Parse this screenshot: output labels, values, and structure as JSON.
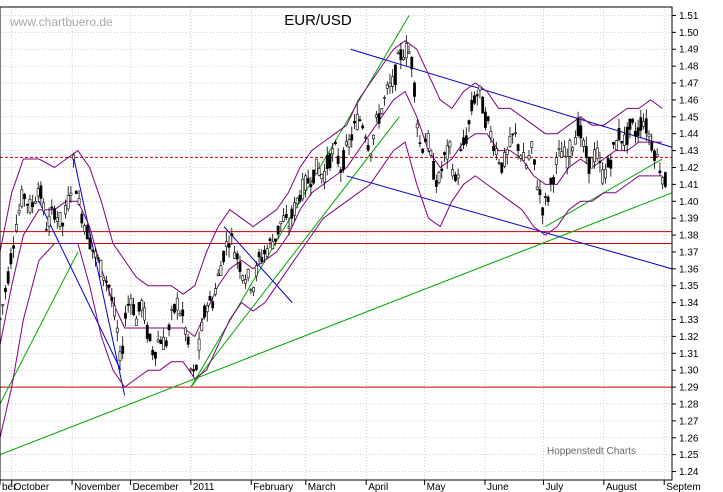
{
  "chart_data": {
    "type": "candlestick",
    "title": "EUR/USD",
    "watermark": "www.chartbuero.de",
    "credit": "Hoppenstedt Charts",
    "ylim": [
      1.235,
      1.515
    ],
    "y_ticks": [
      "1.51",
      "1.50",
      "1.49",
      "1.48",
      "1.47",
      "1.46",
      "1.45",
      "1.44",
      "1.43",
      "1.42",
      "1.41",
      "1.40",
      "1.39",
      "1.38",
      "1.37",
      "1.36",
      "1.35",
      "1.34",
      "1.33",
      "1.32",
      "1.31",
      "1.30",
      "1.29",
      "1.28",
      "1.27",
      "1.26",
      "1.25",
      "1.24"
    ],
    "x_labels": [
      {
        "label": "ber",
        "day": 0
      },
      {
        "label": "October",
        "day": 6
      },
      {
        "label": "November",
        "day": 37
      },
      {
        "label": "December",
        "day": 67
      },
      {
        "label": "2011",
        "day": 98
      },
      {
        "label": "January",
        "day": 98
      },
      {
        "label": "February",
        "day": 129
      },
      {
        "label": "March",
        "day": 157
      },
      {
        "label": "April",
        "day": 188
      },
      {
        "label": "May",
        "day": 218
      },
      {
        "label": "June",
        "day": 249
      },
      {
        "label": "July",
        "day": 279
      },
      {
        "label": "August",
        "day": 310
      },
      {
        "label": "Septem",
        "day": 341
      }
    ],
    "grid": true,
    "price_path": [
      [
        0,
        1.33
      ],
      [
        4,
        1.355
      ],
      [
        8,
        1.385
      ],
      [
        12,
        1.405
      ],
      [
        16,
        1.395
      ],
      [
        20,
        1.41
      ],
      [
        24,
        1.385
      ],
      [
        28,
        1.395
      ],
      [
        32,
        1.385
      ],
      [
        36,
        1.405
      ],
      [
        38,
        1.425
      ],
      [
        40,
        1.4
      ],
      [
        44,
        1.385
      ],
      [
        48,
        1.37
      ],
      [
        52,
        1.36
      ],
      [
        56,
        1.35
      ],
      [
        60,
        1.325
      ],
      [
        62,
        1.3
      ],
      [
        64,
        1.33
      ],
      [
        67,
        1.345
      ],
      [
        70,
        1.33
      ],
      [
        73,
        1.34
      ],
      [
        76,
        1.32
      ],
      [
        79,
        1.31
      ],
      [
        82,
        1.32
      ],
      [
        85,
        1.315
      ],
      [
        88,
        1.33
      ],
      [
        91,
        1.34
      ],
      [
        94,
        1.33
      ],
      [
        96,
        1.32
      ],
      [
        98,
        1.3
      ],
      [
        100,
        1.295
      ],
      [
        103,
        1.32
      ],
      [
        106,
        1.34
      ],
      [
        109,
        1.34
      ],
      [
        112,
        1.355
      ],
      [
        115,
        1.37
      ],
      [
        118,
        1.38
      ],
      [
        121,
        1.37
      ],
      [
        124,
        1.36
      ],
      [
        127,
        1.355
      ],
      [
        130,
        1.35
      ],
      [
        133,
        1.365
      ],
      [
        136,
        1.37
      ],
      [
        139,
        1.375
      ],
      [
        142,
        1.38
      ],
      [
        145,
        1.39
      ],
      [
        148,
        1.385
      ],
      [
        151,
        1.395
      ],
      [
        154,
        1.405
      ],
      [
        157,
        1.41
      ],
      [
        160,
        1.415
      ],
      [
        163,
        1.42
      ],
      [
        166,
        1.415
      ],
      [
        169,
        1.425
      ],
      [
        172,
        1.43
      ],
      [
        175,
        1.42
      ],
      [
        178,
        1.43
      ],
      [
        181,
        1.44
      ],
      [
        184,
        1.45
      ],
      [
        187,
        1.445
      ],
      [
        190,
        1.43
      ],
      [
        193,
        1.445
      ],
      [
        196,
        1.455
      ],
      [
        199,
        1.465
      ],
      [
        202,
        1.47
      ],
      [
        205,
        1.485
      ],
      [
        208,
        1.49
      ],
      [
        210,
        1.488
      ],
      [
        212,
        1.48
      ],
      [
        214,
        1.45
      ],
      [
        216,
        1.43
      ],
      [
        219,
        1.44
      ],
      [
        222,
        1.42
      ],
      [
        225,
        1.41
      ],
      [
        228,
        1.425
      ],
      [
        231,
        1.43
      ],
      [
        234,
        1.41
      ],
      [
        237,
        1.43
      ],
      [
        240,
        1.44
      ],
      [
        243,
        1.46
      ],
      [
        246,
        1.465
      ],
      [
        249,
        1.45
      ],
      [
        252,
        1.44
      ],
      [
        255,
        1.43
      ],
      [
        258,
        1.42
      ],
      [
        261,
        1.43
      ],
      [
        264,
        1.44
      ],
      [
        267,
        1.43
      ],
      [
        270,
        1.42
      ],
      [
        273,
        1.43
      ],
      [
        276,
        1.41
      ],
      [
        279,
        1.395
      ],
      [
        282,
        1.405
      ],
      [
        285,
        1.42
      ],
      [
        288,
        1.43
      ],
      [
        291,
        1.425
      ],
      [
        294,
        1.435
      ],
      [
        297,
        1.445
      ],
      [
        300,
        1.43
      ],
      [
        303,
        1.42
      ],
      [
        306,
        1.43
      ],
      [
        309,
        1.415
      ],
      [
        312,
        1.42
      ],
      [
        315,
        1.43
      ],
      [
        318,
        1.44
      ],
      [
        321,
        1.435
      ],
      [
        324,
        1.445
      ],
      [
        327,
        1.44
      ],
      [
        330,
        1.45
      ],
      [
        333,
        1.44
      ],
      [
        336,
        1.43
      ],
      [
        339,
        1.42
      ],
      [
        342,
        1.41
      ]
    ],
    "bollinger_upper": [
      [
        0,
        1.37
      ],
      [
        6,
        1.405
      ],
      [
        12,
        1.425
      ],
      [
        20,
        1.425
      ],
      [
        28,
        1.42
      ],
      [
        34,
        1.425
      ],
      [
        40,
        1.43
      ],
      [
        46,
        1.42
      ],
      [
        52,
        1.4
      ],
      [
        58,
        1.375
      ],
      [
        64,
        1.365
      ],
      [
        70,
        1.355
      ],
      [
        76,
        1.35
      ],
      [
        82,
        1.35
      ],
      [
        88,
        1.35
      ],
      [
        94,
        1.345
      ],
      [
        100,
        1.35
      ],
      [
        106,
        1.37
      ],
      [
        112,
        1.385
      ],
      [
        118,
        1.395
      ],
      [
        124,
        1.39
      ],
      [
        130,
        1.385
      ],
      [
        136,
        1.39
      ],
      [
        142,
        1.395
      ],
      [
        148,
        1.405
      ],
      [
        154,
        1.42
      ],
      [
        160,
        1.43
      ],
      [
        166,
        1.435
      ],
      [
        172,
        1.44
      ],
      [
        178,
        1.445
      ],
      [
        184,
        1.46
      ],
      [
        190,
        1.47
      ],
      [
        196,
        1.48
      ],
      [
        202,
        1.49
      ],
      [
        208,
        1.495
      ],
      [
        214,
        1.49
      ],
      [
        220,
        1.475
      ],
      [
        226,
        1.46
      ],
      [
        232,
        1.455
      ],
      [
        238,
        1.465
      ],
      [
        244,
        1.47
      ],
      [
        250,
        1.465
      ],
      [
        256,
        1.455
      ],
      [
        262,
        1.455
      ],
      [
        268,
        1.45
      ],
      [
        274,
        1.445
      ],
      [
        280,
        1.44
      ],
      [
        286,
        1.44
      ],
      [
        292,
        1.445
      ],
      [
        298,
        1.45
      ],
      [
        304,
        1.445
      ],
      [
        310,
        1.445
      ],
      [
        316,
        1.45
      ],
      [
        322,
        1.455
      ],
      [
        328,
        1.455
      ],
      [
        334,
        1.46
      ],
      [
        340,
        1.455
      ]
    ],
    "bollinger_lower": [
      [
        0,
        1.26
      ],
      [
        6,
        1.29
      ],
      [
        12,
        1.33
      ],
      [
        20,
        1.365
      ],
      [
        28,
        1.375
      ],
      [
        34,
        1.375
      ],
      [
        40,
        1.375
      ],
      [
        46,
        1.35
      ],
      [
        52,
        1.32
      ],
      [
        58,
        1.3
      ],
      [
        64,
        1.29
      ],
      [
        70,
        1.295
      ],
      [
        76,
        1.3
      ],
      [
        82,
        1.3
      ],
      [
        88,
        1.305
      ],
      [
        94,
        1.305
      ],
      [
        100,
        1.295
      ],
      [
        106,
        1.3
      ],
      [
        112,
        1.315
      ],
      [
        118,
        1.33
      ],
      [
        124,
        1.34
      ],
      [
        130,
        1.335
      ],
      [
        136,
        1.34
      ],
      [
        142,
        1.35
      ],
      [
        148,
        1.36
      ],
      [
        154,
        1.37
      ],
      [
        160,
        1.38
      ],
      [
        166,
        1.39
      ],
      [
        172,
        1.395
      ],
      [
        178,
        1.4
      ],
      [
        184,
        1.405
      ],
      [
        190,
        1.41
      ],
      [
        196,
        1.42
      ],
      [
        202,
        1.43
      ],
      [
        208,
        1.435
      ],
      [
        214,
        1.41
      ],
      [
        220,
        1.39
      ],
      [
        226,
        1.385
      ],
      [
        232,
        1.4
      ],
      [
        238,
        1.41
      ],
      [
        244,
        1.415
      ],
      [
        250,
        1.41
      ],
      [
        256,
        1.405
      ],
      [
        262,
        1.4
      ],
      [
        268,
        1.395
      ],
      [
        274,
        1.385
      ],
      [
        280,
        1.38
      ],
      [
        286,
        1.385
      ],
      [
        292,
        1.395
      ],
      [
        298,
        1.4
      ],
      [
        304,
        1.4
      ],
      [
        310,
        1.405
      ],
      [
        316,
        1.405
      ],
      [
        322,
        1.41
      ],
      [
        328,
        1.415
      ],
      [
        334,
        1.415
      ],
      [
        340,
        1.415
      ]
    ],
    "bollinger_mid": [
      [
        0,
        1.315
      ],
      [
        6,
        1.35
      ],
      [
        12,
        1.38
      ],
      [
        20,
        1.395
      ],
      [
        28,
        1.395
      ],
      [
        34,
        1.4
      ],
      [
        40,
        1.4
      ],
      [
        46,
        1.385
      ],
      [
        52,
        1.36
      ],
      [
        58,
        1.34
      ],
      [
        64,
        1.325
      ],
      [
        70,
        1.325
      ],
      [
        76,
        1.325
      ],
      [
        82,
        1.325
      ],
      [
        88,
        1.325
      ],
      [
        94,
        1.325
      ],
      [
        100,
        1.32
      ],
      [
        106,
        1.335
      ],
      [
        112,
        1.35
      ],
      [
        118,
        1.36
      ],
      [
        124,
        1.365
      ],
      [
        130,
        1.36
      ],
      [
        136,
        1.365
      ],
      [
        142,
        1.37
      ],
      [
        148,
        1.38
      ],
      [
        154,
        1.395
      ],
      [
        160,
        1.405
      ],
      [
        166,
        1.41
      ],
      [
        172,
        1.415
      ],
      [
        178,
        1.42
      ],
      [
        184,
        1.43
      ],
      [
        190,
        1.44
      ],
      [
        196,
        1.45
      ],
      [
        202,
        1.46
      ],
      [
        208,
        1.465
      ],
      [
        214,
        1.45
      ],
      [
        220,
        1.43
      ],
      [
        226,
        1.42
      ],
      [
        232,
        1.425
      ],
      [
        238,
        1.435
      ],
      [
        244,
        1.44
      ],
      [
        250,
        1.44
      ],
      [
        256,
        1.43
      ],
      [
        262,
        1.43
      ],
      [
        268,
        1.425
      ],
      [
        274,
        1.415
      ],
      [
        280,
        1.41
      ],
      [
        286,
        1.41
      ],
      [
        292,
        1.42
      ],
      [
        298,
        1.425
      ],
      [
        304,
        1.42
      ],
      [
        310,
        1.425
      ],
      [
        316,
        1.43
      ],
      [
        322,
        1.43
      ],
      [
        328,
        1.435
      ],
      [
        334,
        1.435
      ],
      [
        340,
        1.435
      ]
    ],
    "horizontal_levels": [
      {
        "y": 1.426,
        "style": "dashed",
        "color": "#cc0000"
      },
      {
        "y": 1.382,
        "style": "solid",
        "color": "#cc0000"
      },
      {
        "y": 1.375,
        "style": "solid",
        "color": "#cc0000"
      },
      {
        "y": 1.29,
        "style": "solid",
        "color": "#cc0000"
      }
    ],
    "trend_lines": [
      {
        "x1": 0,
        "y1": 1.25,
        "x2": 345,
        "y2": 1.405,
        "color": "#00aa00"
      },
      {
        "x1": 0,
        "y1": 1.28,
        "x2": 40,
        "y2": 1.37,
        "color": "#00aa00"
      },
      {
        "x1": 98,
        "y1": 1.29,
        "x2": 210,
        "y2": 1.51,
        "color": "#00aa00"
      },
      {
        "x1": 98,
        "y1": 1.29,
        "x2": 205,
        "y2": 1.45,
        "color": "#00aa00"
      },
      {
        "x1": 280,
        "y1": 1.385,
        "x2": 340,
        "y2": 1.425,
        "color": "#00aa00"
      },
      {
        "x1": 38,
        "y1": 1.425,
        "x2": 64,
        "y2": 1.285,
        "color": "#0000cc"
      },
      {
        "x1": 20,
        "y1": 1.4,
        "x2": 62,
        "y2": 1.3,
        "color": "#0000cc"
      },
      {
        "x1": 115,
        "y1": 1.385,
        "x2": 150,
        "y2": 1.34,
        "color": "#0000cc"
      },
      {
        "x1": 178,
        "y1": 1.415,
        "x2": 345,
        "y2": 1.36,
        "color": "#0000cc"
      },
      {
        "x1": 180,
        "y1": 1.49,
        "x2": 345,
        "y2": 1.432,
        "color": "#0000cc"
      }
    ],
    "colors": {
      "candle": "#000000",
      "band": "#800080",
      "grid": "#b0b0b0"
    }
  }
}
